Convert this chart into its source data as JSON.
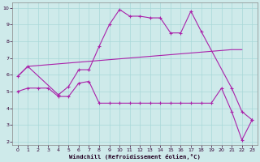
{
  "xlabel": "Windchill (Refroidissement éolien,°C)",
  "background_color": "#ceeaea",
  "grid_color": "#a8d8d8",
  "line_color": "#aa22aa",
  "xlim": [
    -0.5,
    23.5
  ],
  "ylim": [
    1.8,
    10.3
  ],
  "yticks": [
    2,
    3,
    4,
    5,
    6,
    7,
    8,
    9,
    10
  ],
  "xticks": [
    0,
    1,
    2,
    3,
    4,
    5,
    6,
    7,
    8,
    9,
    10,
    11,
    12,
    13,
    14,
    15,
    16,
    17,
    18,
    19,
    20,
    21,
    22,
    23
  ],
  "line1_x": [
    0,
    1,
    2,
    3,
    4,
    5,
    6,
    7,
    8,
    9,
    10,
    11,
    12,
    13,
    14,
    15,
    16,
    17,
    18,
    19,
    20,
    21,
    22
  ],
  "line1_y": [
    5.9,
    6.5,
    6.55,
    6.6,
    6.65,
    6.7,
    6.75,
    6.8,
    6.85,
    6.9,
    6.95,
    7.0,
    7.05,
    7.1,
    7.15,
    7.2,
    7.25,
    7.3,
    7.35,
    7.4,
    7.45,
    7.5,
    7.5
  ],
  "line2_x": [
    0,
    1,
    4,
    5,
    6,
    7,
    8,
    9,
    10,
    11,
    12,
    13,
    14,
    15,
    16,
    17,
    18,
    21,
    22,
    23
  ],
  "line2_y": [
    5.9,
    6.5,
    4.8,
    5.3,
    6.3,
    6.3,
    7.7,
    9.0,
    9.9,
    9.5,
    9.5,
    9.4,
    9.4,
    8.5,
    8.5,
    9.8,
    8.6,
    5.2,
    3.8,
    3.3
  ],
  "line3_x": [
    0,
    1,
    2,
    3,
    4,
    5,
    6,
    7,
    8,
    9,
    10,
    11,
    12,
    13,
    14,
    15,
    16,
    17,
    18,
    19,
    20,
    21,
    22,
    23
  ],
  "line3_y": [
    5.0,
    5.2,
    5.2,
    5.2,
    4.7,
    4.7,
    5.5,
    5.6,
    4.3,
    4.3,
    4.3,
    4.3,
    4.3,
    4.3,
    4.3,
    4.3,
    4.3,
    4.3,
    4.3,
    4.3,
    5.2,
    3.8,
    2.1,
    3.3
  ]
}
